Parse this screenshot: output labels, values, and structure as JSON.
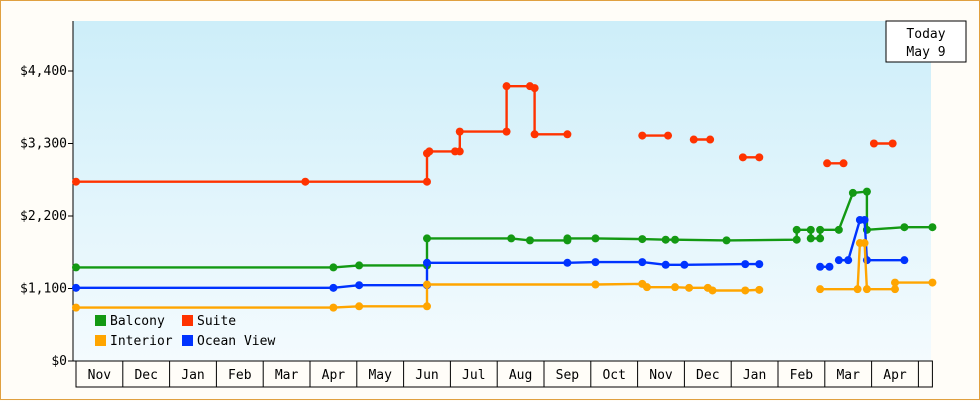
{
  "chart_data": {
    "type": "line",
    "title": "",
    "xlabel": "",
    "ylabel": "",
    "ylim": [
      0,
      4400
    ],
    "y_ticks": [
      {
        "value": 0,
        "label": "$0"
      },
      {
        "value": 1100,
        "label": "$1,100"
      },
      {
        "value": 2200,
        "label": "$2,200"
      },
      {
        "value": 3300,
        "label": "$3,300"
      },
      {
        "value": 4400,
        "label": "$4,400"
      }
    ],
    "x_categories": [
      "Nov",
      "Dec",
      "Jan",
      "Feb",
      "Mar",
      "Apr",
      "May",
      "Jun",
      "Jul",
      "Aug",
      "Sep",
      "Oct",
      "Nov",
      "Dec",
      "Jan",
      "Feb",
      "Mar",
      "Apr"
    ],
    "x_range_months": [
      0,
      18.3
    ],
    "grid": false,
    "legend": {
      "placement": "bottom-left"
    },
    "annotation": {
      "line1": "Today",
      "line2": "May 9"
    },
    "series": [
      {
        "name": "Balcony",
        "color": "#139913",
        "points": [
          [
            0,
            1420
          ],
          [
            5.5,
            1420
          ],
          [
            6.05,
            1450
          ],
          [
            7.5,
            1450
          ],
          [
            7.5,
            1860
          ],
          [
            9.3,
            1860
          ],
          [
            9.7,
            1830
          ],
          [
            10.5,
            1830
          ],
          [
            10.5,
            1860
          ],
          [
            11.1,
            1860
          ],
          [
            12.1,
            1850
          ],
          [
            12.6,
            1840
          ],
          [
            12.8,
            1840
          ],
          [
            13.9,
            1830
          ],
          [
            15.4,
            1840
          ],
          [
            15.4,
            1990
          ],
          [
            15.7,
            1990
          ],
          [
            15.7,
            1860
          ],
          [
            15.9,
            1860
          ],
          [
            15.9,
            1990
          ],
          [
            16.3,
            1990
          ],
          [
            16.6,
            2550
          ],
          [
            16.9,
            2570
          ],
          [
            16.9,
            1990
          ],
          [
            17.7,
            2030
          ],
          [
            18.3,
            2030
          ]
        ]
      },
      {
        "name": "Suite",
        "color": "#ff3300",
        "points": [
          [
            0,
            2720
          ],
          [
            4.9,
            2720
          ],
          [
            7.5,
            2720
          ],
          [
            7.5,
            3150
          ],
          [
            7.55,
            3180
          ],
          [
            8.1,
            3180
          ],
          [
            8.2,
            3180
          ],
          [
            8.2,
            3480
          ],
          [
            9.2,
            3480
          ],
          [
            9.2,
            4170
          ],
          [
            9.7,
            4170
          ],
          [
            9.8,
            4140
          ],
          [
            9.8,
            3440
          ],
          [
            10.5,
            3440
          ]
        ]
      },
      {
        "name": "Ocean View",
        "color": "#0033ff",
        "points": [
          [
            0,
            1110
          ],
          [
            5.5,
            1110
          ],
          [
            6.05,
            1150
          ],
          [
            7.5,
            1150
          ],
          [
            7.5,
            1490
          ],
          [
            10.5,
            1490
          ],
          [
            11.1,
            1500
          ],
          [
            12.1,
            1500
          ],
          [
            12.6,
            1460
          ],
          [
            13.0,
            1460
          ],
          [
            14.3,
            1470
          ],
          [
            14.6,
            1470
          ]
        ]
      },
      {
        "name": "Interior",
        "color": "#ffa500",
        "points": [
          [
            0,
            810
          ],
          [
            5.5,
            810
          ],
          [
            6.05,
            830
          ],
          [
            7.5,
            830
          ],
          [
            7.5,
            1160
          ],
          [
            11.1,
            1160
          ],
          [
            12.1,
            1170
          ],
          [
            12.2,
            1120
          ],
          [
            12.8,
            1120
          ],
          [
            13.1,
            1110
          ],
          [
            13.5,
            1110
          ],
          [
            13.6,
            1070
          ],
          [
            14.3,
            1070
          ],
          [
            14.6,
            1080
          ]
        ]
      },
      {
        "name": "Suite",
        "color": "#ff3300",
        "points": [
          [
            12.1,
            3420
          ],
          [
            12.65,
            3420
          ]
        ]
      },
      {
        "name": "Suite",
        "color": "#ff3300",
        "points": [
          [
            13.2,
            3360
          ],
          [
            13.55,
            3360
          ]
        ]
      },
      {
        "name": "Suite",
        "color": "#ff3300",
        "points": [
          [
            14.25,
            3090
          ],
          [
            14.6,
            3090
          ]
        ]
      },
      {
        "name": "Suite",
        "color": "#ff3300",
        "points": [
          [
            16.05,
            3000
          ],
          [
            16.4,
            3000
          ]
        ]
      },
      {
        "name": "Suite",
        "color": "#ff3300",
        "points": [
          [
            17.05,
            3300
          ],
          [
            17.45,
            3300
          ]
        ]
      },
      {
        "name": "Ocean View",
        "color": "#0033ff",
        "points": [
          [
            15.9,
            1430
          ],
          [
            16.1,
            1430
          ]
        ]
      },
      {
        "name": "Ocean View",
        "color": "#0033ff",
        "points": [
          [
            16.3,
            1530
          ],
          [
            16.5,
            1530
          ],
          [
            16.75,
            2140
          ],
          [
            16.85,
            2140
          ],
          [
            16.9,
            1530
          ],
          [
            17.7,
            1530
          ]
        ]
      },
      {
        "name": "Interior",
        "color": "#ffa500",
        "points": [
          [
            15.9,
            1090
          ],
          [
            16.7,
            1090
          ],
          [
            16.75,
            1790
          ],
          [
            16.85,
            1790
          ],
          [
            16.9,
            1090
          ],
          [
            17.5,
            1090
          ],
          [
            17.5,
            1190
          ],
          [
            18.3,
            1190
          ]
        ]
      }
    ]
  }
}
